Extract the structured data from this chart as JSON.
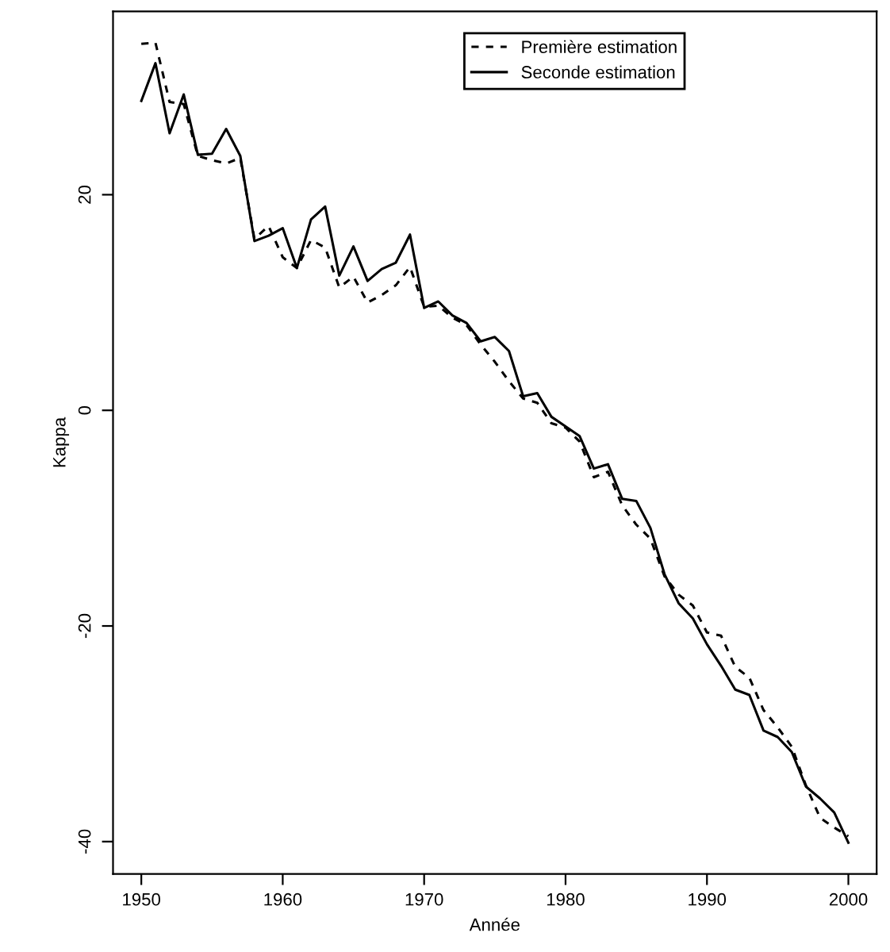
{
  "chart_data": {
    "type": "line",
    "xlabel": "Année",
    "ylabel": "Kappa",
    "x": [
      1950,
      1951,
      1952,
      1953,
      1954,
      1955,
      1956,
      1957,
      1958,
      1959,
      1960,
      1961,
      1962,
      1963,
      1964,
      1965,
      1966,
      1967,
      1968,
      1969,
      1970,
      1971,
      1972,
      1973,
      1974,
      1975,
      1976,
      1977,
      1978,
      1979,
      1980,
      1981,
      1982,
      1983,
      1984,
      1985,
      1986,
      1987,
      1988,
      1989,
      1990,
      1991,
      1992,
      1993,
      1994,
      1995,
      1996,
      1997,
      1998,
      1999,
      2000
    ],
    "series": [
      {
        "name": "Première estimation",
        "color": "#000000",
        "line_style": "dashed",
        "values": [
          34.0,
          34.1,
          28.6,
          28.4,
          23.6,
          23.2,
          22.9,
          23.4,
          15.9,
          17.1,
          14.2,
          13.2,
          15.8,
          15.1,
          11.4,
          12.4,
          10.0,
          10.7,
          11.6,
          13.3,
          9.6,
          9.7,
          8.6,
          7.9,
          6.1,
          4.5,
          2.7,
          1.1,
          0.7,
          -1.2,
          -1.6,
          -2.9,
          -6.2,
          -5.7,
          -8.8,
          -10.6,
          -11.9,
          -15.4,
          -17.1,
          -18.1,
          -20.6,
          -20.9,
          -23.8,
          -24.8,
          -27.8,
          -29.4,
          -31.2,
          -34.8,
          -37.8,
          -38.7,
          -39.5
        ]
      },
      {
        "name": "Seconde estimation",
        "color": "#000000",
        "line_style": "solid",
        "values": [
          28.7,
          32.2,
          25.7,
          29.3,
          23.7,
          23.8,
          26.1,
          23.6,
          15.7,
          16.2,
          16.9,
          13.2,
          17.7,
          18.9,
          12.5,
          15.2,
          12.0,
          13.1,
          13.7,
          16.3,
          9.5,
          10.1,
          8.8,
          8.1,
          6.4,
          6.8,
          5.5,
          1.3,
          1.6,
          -0.6,
          -1.5,
          -2.4,
          -5.4,
          -5.0,
          -8.2,
          -8.4,
          -10.9,
          -15.2,
          -17.9,
          -19.3,
          -21.7,
          -23.7,
          -25.9,
          -26.4,
          -29.7,
          -30.3,
          -31.7,
          -34.9,
          -36.0,
          -37.3,
          -40.1
        ]
      }
    ],
    "xlim": [
      1948,
      2002
    ],
    "ylim": [
      -43,
      37
    ],
    "xticks": [
      1950,
      1960,
      1970,
      1980,
      1990,
      2000
    ],
    "yticks": [
      -40,
      -20,
      0,
      20
    ],
    "grid": false,
    "legend": "top right"
  }
}
